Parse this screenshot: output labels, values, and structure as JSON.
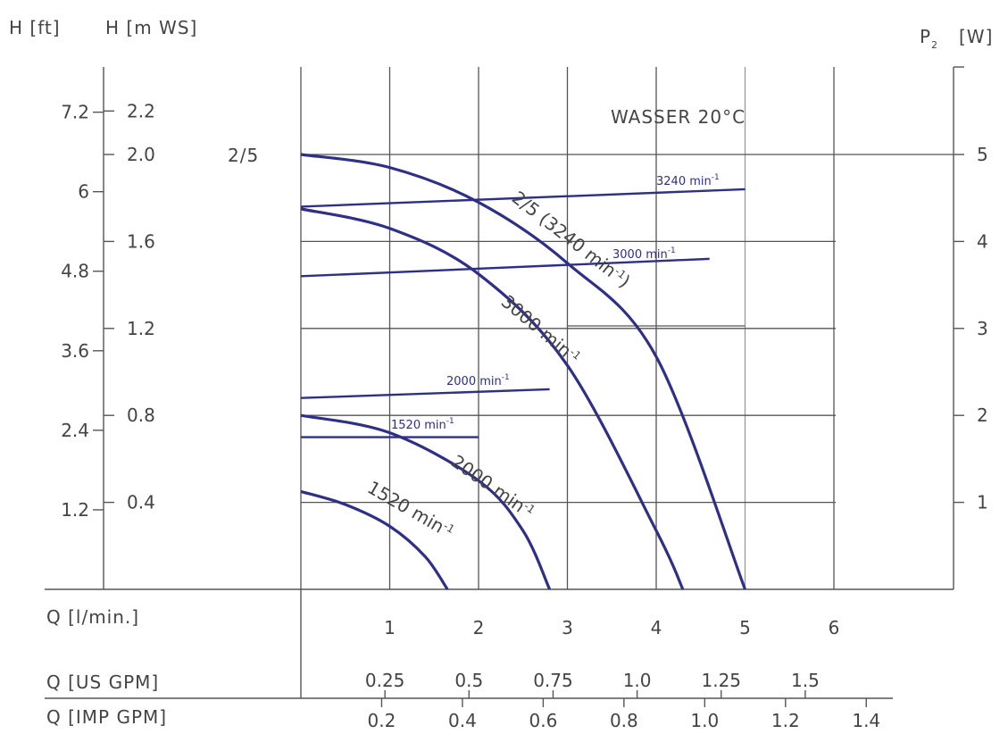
{
  "chart_data": {
    "type": "line",
    "title": "",
    "annotation": "WASSER 20°C",
    "model_label": "2/5",
    "axes": {
      "y_left_ft": {
        "label": "H [ft]",
        "ticks": [
          "1.2",
          "2.4",
          "3.6",
          "4.8",
          "6",
          "7.2"
        ],
        "values": [
          1.2,
          2.4,
          3.6,
          4.8,
          6,
          7.2
        ]
      },
      "y_left_m": {
        "label": "H [m WS]",
        "ticks": [
          "0.4",
          "0.8",
          "1.2",
          "1.6",
          "2.0",
          "2.2"
        ],
        "values": [
          0.4,
          0.8,
          1.2,
          1.6,
          2.0,
          2.2
        ],
        "ylim": [
          0,
          2.0
        ]
      },
      "y_right": {
        "label": "P",
        "label_sub": "2",
        "label_unit": "[W]",
        "ticks": [
          "1",
          "2",
          "3",
          "4",
          "5"
        ],
        "values": [
          1,
          2,
          3,
          4,
          5
        ],
        "ylim": [
          0,
          5
        ]
      },
      "x_lmin": {
        "label": "Q [l/min.]",
        "ticks": [
          "1",
          "2",
          "3",
          "4",
          "5",
          "6"
        ],
        "values": [
          1,
          2,
          3,
          4,
          5,
          6
        ],
        "xlim": [
          0,
          6
        ]
      },
      "x_usgpm": {
        "label": "Q [US GPM]",
        "ticks": [
          "0.25",
          "0.5",
          "0.75",
          "1.0",
          "1.25",
          "1.5"
        ],
        "values": [
          0.25,
          0.5,
          0.75,
          1.0,
          1.25,
          1.5
        ]
      },
      "x_impgpm": {
        "label": "Q [IMP GPM]",
        "ticks": [
          "0.2",
          "0.4",
          "0.6",
          "0.8",
          "1.0",
          "1.2",
          "1.4"
        ],
        "values": [
          0.2,
          0.4,
          0.6,
          0.8,
          1.0,
          1.2,
          1.4
        ]
      }
    },
    "head_series": [
      {
        "name": "2/5 (3240 min⁻¹)",
        "label_lines": [
          "2/5 (3240 min",
          "-1",
          ")"
        ],
        "x": [
          0,
          1,
          2,
          3,
          4,
          5
        ],
        "y": [
          2.0,
          1.94,
          1.78,
          1.5,
          1.07,
          0
        ]
      },
      {
        "name": "3000 min⁻¹",
        "label_lines": [
          "3000 min",
          "-1"
        ],
        "x": [
          0,
          1,
          2,
          3,
          4,
          4.3
        ],
        "y": [
          1.75,
          1.66,
          1.45,
          1.03,
          0.27,
          0
        ]
      },
      {
        "name": "2000 min⁻¹",
        "label_lines": [
          "2000 min",
          "-1"
        ],
        "x": [
          0,
          1,
          2,
          2.5,
          2.8
        ],
        "y": [
          0.8,
          0.72,
          0.5,
          0.27,
          0
        ]
      },
      {
        "name": "1520 min⁻¹",
        "label_lines": [
          "1520 min",
          "-1"
        ],
        "x": [
          0,
          0.5,
          1,
          1.4,
          1.65
        ],
        "y": [
          0.45,
          0.39,
          0.29,
          0.15,
          0
        ]
      }
    ],
    "power_series": [
      {
        "name": "3240 min⁻¹",
        "label": "3240 min",
        "label_sup": "-1",
        "x": [
          0,
          5
        ],
        "y": [
          4.4,
          4.6
        ]
      },
      {
        "name": "3000 min⁻¹",
        "label": "3000 min",
        "label_sup": "-1",
        "x": [
          0,
          4.6
        ],
        "y": [
          3.6,
          3.8
        ]
      },
      {
        "name": "2000 min⁻¹",
        "label": "2000 min",
        "label_sup": "-1",
        "x": [
          0,
          2.8
        ],
        "y": [
          2.2,
          2.3
        ]
      },
      {
        "name": "1520 min⁻¹",
        "label": "1520 min",
        "label_sup": "-1",
        "x": [
          0,
          2
        ],
        "y": [
          1.75,
          1.75
        ]
      }
    ],
    "grid": true,
    "colors": {
      "curve": "#2e2f86",
      "text": "#444444",
      "grid": "#555555"
    }
  }
}
